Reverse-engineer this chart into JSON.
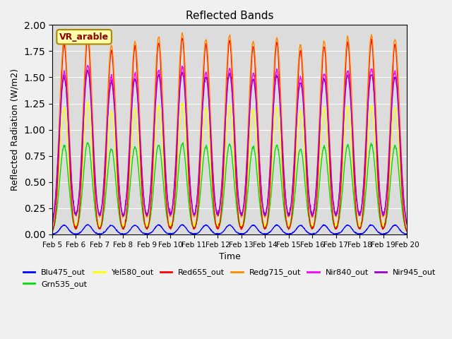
{
  "title": "Reflected Bands",
  "xlabel": "Time",
  "ylabel": "Reflected Radiation (W/m2)",
  "annotation": "VR_arable",
  "ylim": [
    0,
    2.0
  ],
  "background_color": "#dcdcdc",
  "fig_facecolor": "#f0f0f0",
  "series": {
    "Blu475_out": {
      "color": "#0000ff",
      "lw": 1.0
    },
    "Grn535_out": {
      "color": "#00dd00",
      "lw": 1.0
    },
    "Yel580_out": {
      "color": "#ffff00",
      "lw": 1.0
    },
    "Red655_out": {
      "color": "#ff0000",
      "lw": 1.0
    },
    "Redg715_out": {
      "color": "#ff8800",
      "lw": 1.0
    },
    "Nir840_out": {
      "color": "#ff00ff",
      "lw": 1.0
    },
    "Nir945_out": {
      "color": "#9900cc",
      "lw": 1.0
    }
  },
  "xtick_labels": [
    "Feb 5",
    "Feb 6",
    "Feb 7",
    "Feb 8",
    "Feb 9",
    "Feb 10",
    "Feb 11",
    "Feb 12",
    "Feb 13",
    "Feb 14",
    "Feb 15",
    "Feb 16",
    "Feb 17",
    "Feb 18",
    "Feb 19",
    "Feb 20"
  ],
  "n_days": 15,
  "points_per_day": 96,
  "seed": 42
}
